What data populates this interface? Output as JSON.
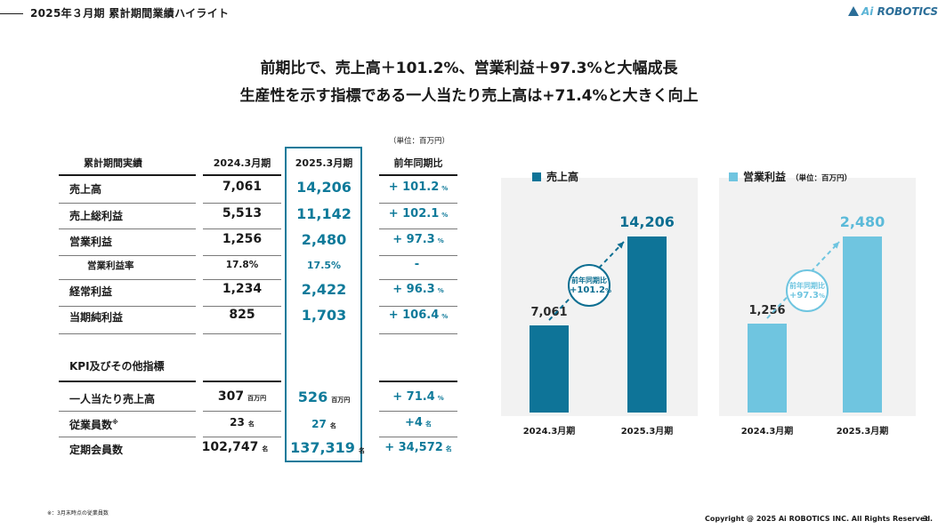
{
  "header": {
    "title": "2025年３月期 累計期間業績ハイライト",
    "logo_prefix": "Ai",
    "logo_text": " ROBOTICS"
  },
  "headline": {
    "line1": "前期比で、売上高＋101.2%、営業利益＋97.3%と大幅成長",
    "line2": "生産性を示す指標である一人当たり売上高は+71.4%と大きく向上"
  },
  "table": {
    "unit_note": "（単位：百万円）",
    "headers": [
      "累計期間実績",
      "2024.3月期",
      "2025.3月期",
      "前年同期比"
    ],
    "rows": [
      {
        "label": "売上高",
        "v2024": "7,061",
        "v2025": "14,206",
        "yoy": "+ 101.2",
        "yoy_unit": "%"
      },
      {
        "label": "売上総利益",
        "v2024": "5,513",
        "v2025": "11,142",
        "yoy": "+ 102.1",
        "yoy_unit": "%"
      },
      {
        "label": "営業利益",
        "v2024": "1,256",
        "v2025": "2,480",
        "yoy": "+ 97.3",
        "yoy_unit": "%"
      },
      {
        "label": "営業利益率",
        "v2024": "17.8%",
        "v2025": "17.5%",
        "yoy": "-",
        "yoy_unit": ""
      },
      {
        "label": "経常利益",
        "v2024": "1,234",
        "v2025": "2,422",
        "yoy": "+ 96.3",
        "yoy_unit": "%"
      },
      {
        "label": "当期純利益",
        "v2024": "825",
        "v2025": "1,703",
        "yoy": "+ 106.4",
        "yoy_unit": "%"
      }
    ],
    "kpi_title": "KPI及びその他指標",
    "kpi_rows": [
      {
        "label": "一人当たり売上高",
        "v2024": "307",
        "u2024": "百万円",
        "v2025": "526",
        "u2025": "百万円",
        "yoy": "+ 71.4",
        "yoy_unit": "%"
      },
      {
        "label": "従業員数",
        "label_sup": "※",
        "v2024": "23",
        "u2024": "名",
        "v2025": "27",
        "u2025": "名",
        "yoy": "+4",
        "yoy_unit": "名"
      },
      {
        "label": "定期会員数",
        "v2024": "102,747",
        "u2024": "名",
        "v2025": "137,319",
        "u2025": "名",
        "yoy": "+ 34,572",
        "yoy_unit": "名"
      }
    ]
  },
  "chart_data": [
    {
      "type": "bar",
      "title": "売上高",
      "categories": [
        "2024.3月期",
        "2025.3月期"
      ],
      "values": [
        7061,
        14206
      ],
      "value_labels": [
        "7,061",
        "14,206"
      ],
      "color": "#0e7498",
      "growth_label": "前年同期比",
      "growth_value": "+101.2",
      "growth_unit": "%"
    },
    {
      "type": "bar",
      "title": "営業利益",
      "unit_note": "（単位：百万円）",
      "categories": [
        "2024.3月期",
        "2025.3月期"
      ],
      "values": [
        1256,
        2480
      ],
      "value_labels": [
        "1,256",
        "2,480"
      ],
      "color": "#6fc5e0",
      "growth_label": "前年同期比",
      "growth_value": "+97.3",
      "growth_unit": "%"
    }
  ],
  "footer": {
    "footnote": "※：3月末時点の従業員数",
    "copyright": "Copyright @ 2025 Ai ROBOTICS INC. All Rights Reserved.",
    "page": "3"
  }
}
